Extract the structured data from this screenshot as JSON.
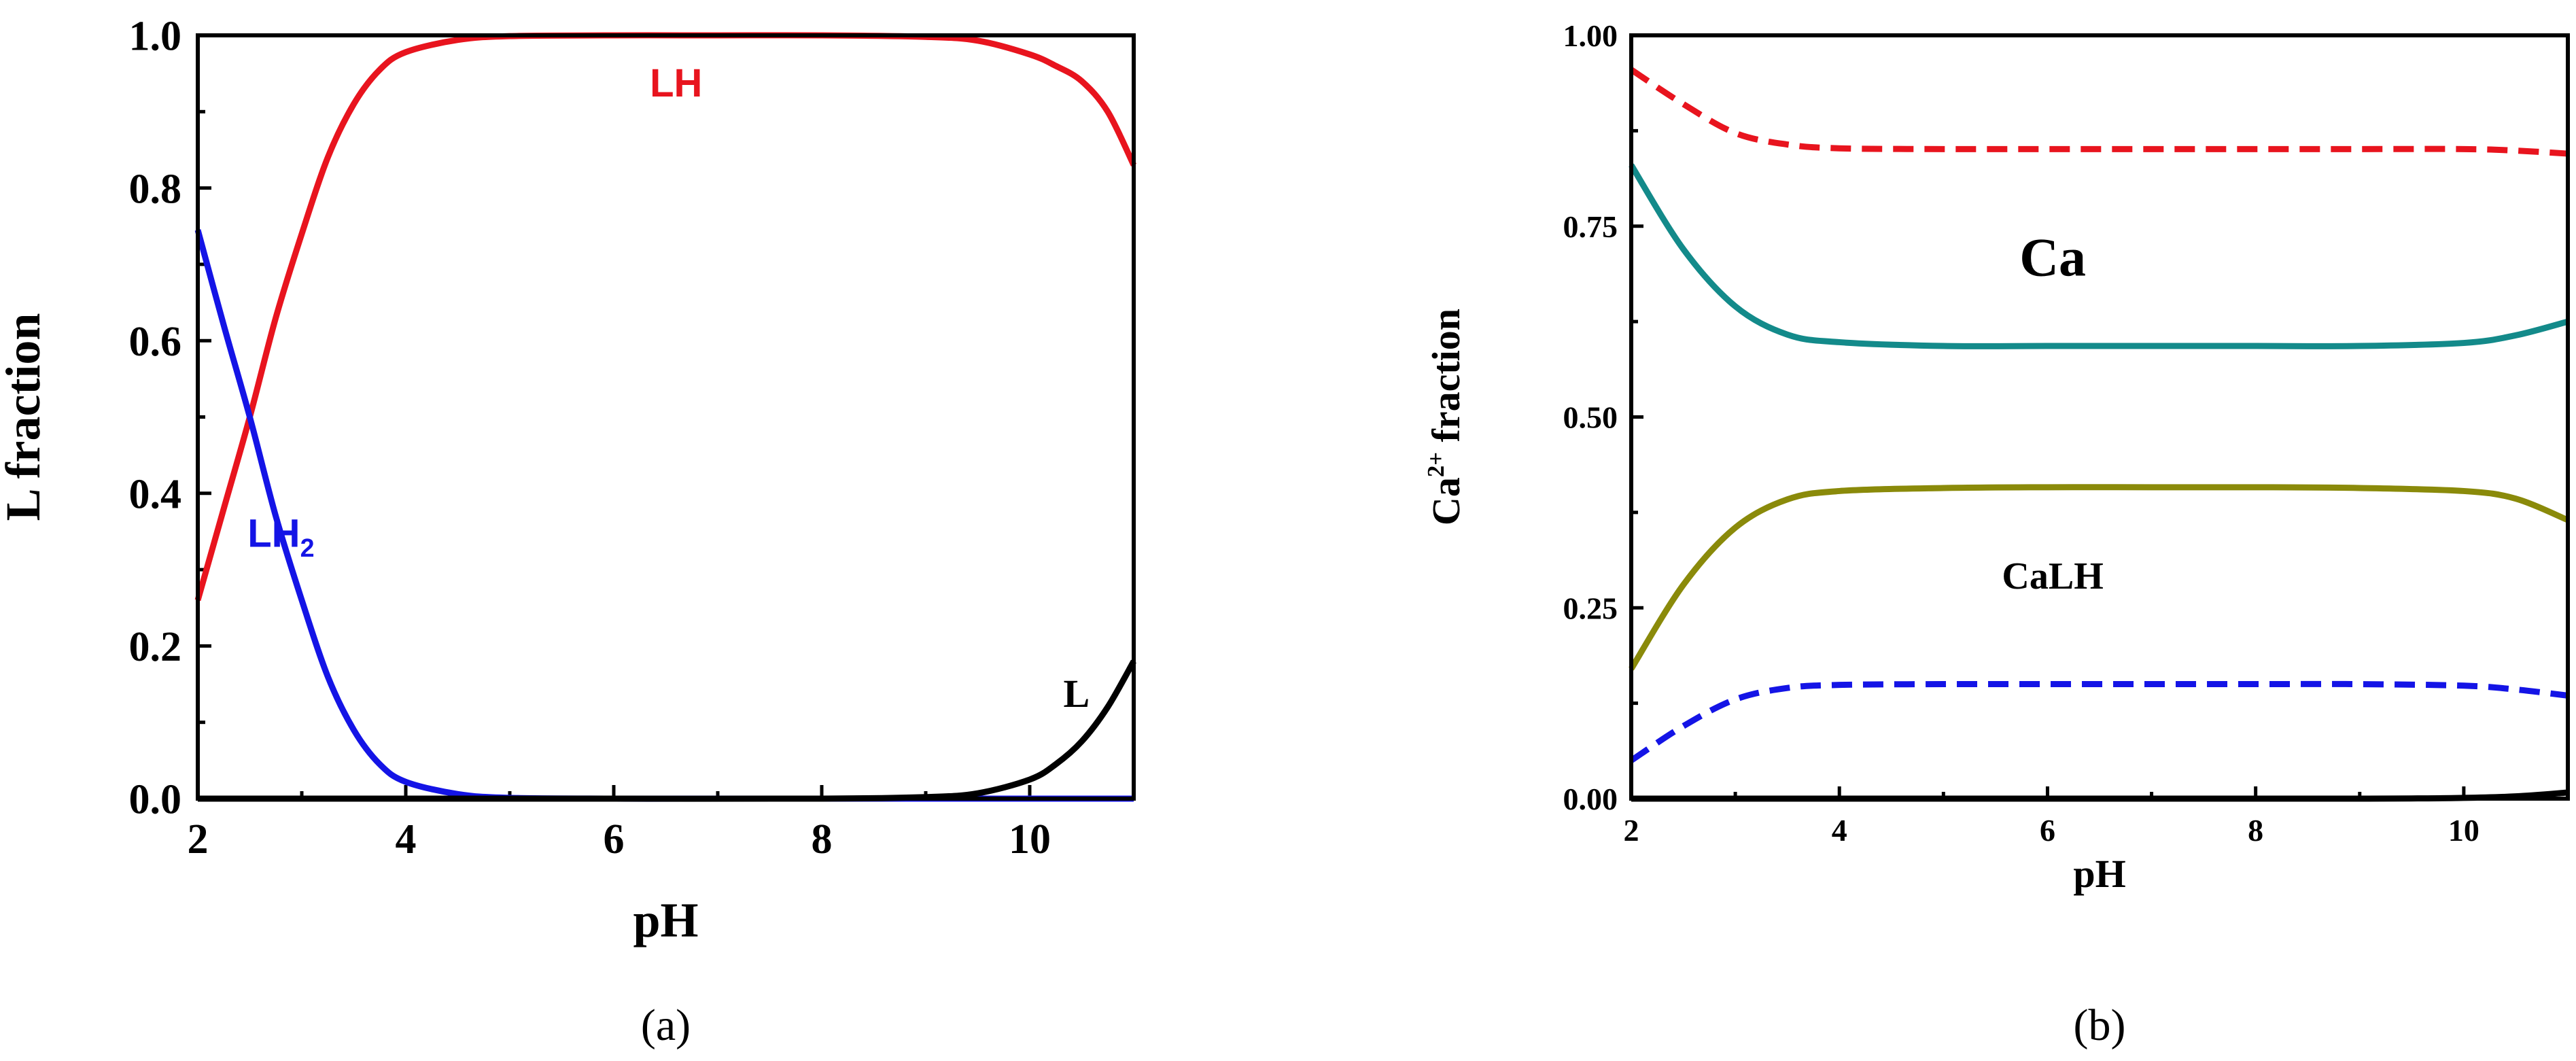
{
  "chart_data": [
    {
      "type": "line",
      "panel": "a",
      "caption": "(a)",
      "xlabel": "pH",
      "ylabel": "L fraction",
      "xlim": [
        2,
        11
      ],
      "ylim": [
        0,
        1
      ],
      "xticks": [
        2,
        4,
        6,
        8,
        10
      ],
      "xtick_labels": [
        "2",
        "4",
        "6",
        "8",
        "10"
      ],
      "yticks": [
        0,
        0.2,
        0.4,
        0.6,
        0.8,
        1.0
      ],
      "ytick_labels": [
        "0.0",
        "0.2",
        "0.4",
        "0.6",
        "0.8",
        "1.0"
      ],
      "series": [
        {
          "name": "LH",
          "color": "#e8141e",
          "dash": "solid",
          "x": [
            2,
            2.25,
            2.5,
            2.75,
            3,
            3.25,
            3.5,
            3.75,
            4,
            4.5,
            5,
            6,
            7,
            8,
            9,
            9.5,
            10,
            10.25,
            10.5,
            10.75,
            11
          ],
          "y": [
            0.26,
            0.38,
            0.5,
            0.63,
            0.74,
            0.84,
            0.91,
            0.955,
            0.978,
            0.994,
            0.999,
            1.0,
            1.0,
            1.0,
            0.998,
            0.993,
            0.975,
            0.96,
            0.94,
            0.9,
            0.83
          ]
        },
        {
          "name": "LH2",
          "color": "#1414e6",
          "dash": "solid",
          "x": [
            2,
            2.25,
            2.5,
            2.75,
            3,
            3.25,
            3.5,
            3.75,
            4,
            4.5,
            5,
            6,
            7,
            8,
            9,
            10,
            11
          ],
          "y": [
            0.745,
            0.62,
            0.5,
            0.37,
            0.26,
            0.16,
            0.09,
            0.045,
            0.022,
            0.006,
            0.001,
            0,
            0,
            0,
            0,
            0,
            0
          ]
        },
        {
          "name": "L",
          "color": "#000000",
          "dash": "solid",
          "x": [
            2,
            4,
            6,
            8,
            9,
            9.5,
            10,
            10.25,
            10.5,
            10.75,
            11
          ],
          "y": [
            0,
            0,
            0,
            0,
            0.002,
            0.007,
            0.025,
            0.045,
            0.075,
            0.12,
            0.18
          ]
        }
      ],
      "annotations": [
        {
          "text": "LH",
          "color": "#e8141e",
          "font": "sans",
          "x": 6.6,
          "y": 0.92
        },
        {
          "text": "LH",
          "sub": "2",
          "color": "#1414e6",
          "font": "sans",
          "x": 2.8,
          "y": 0.33
        },
        {
          "text": "L",
          "color": "#000000",
          "font": "serif",
          "x": 10.45,
          "y": 0.12
        }
      ]
    },
    {
      "type": "line",
      "panel": "b",
      "caption": "(b)",
      "xlabel": "pH",
      "ylabel": "Ca",
      "ylabel_sup": "2+",
      "ylabel_rest": " fraction",
      "xlim": [
        2,
        11
      ],
      "ylim": [
        0,
        1
      ],
      "xticks": [
        2,
        4,
        6,
        8,
        10
      ],
      "xtick_labels": [
        "2",
        "4",
        "6",
        "8",
        "10"
      ],
      "yticks": [
        0,
        0.25,
        0.5,
        0.75,
        1.0
      ],
      "ytick_labels": [
        "0.00",
        "0.25",
        "0.50",
        "0.75",
        "1.00"
      ],
      "series": [
        {
          "name": "red-dashed",
          "color": "#e8141e",
          "dash": "dashed",
          "x": [
            2,
            2.5,
            3,
            3.5,
            4,
            5,
            6,
            7,
            8,
            9,
            10,
            10.5,
            11
          ],
          "y": [
            0.955,
            0.91,
            0.872,
            0.857,
            0.852,
            0.851,
            0.851,
            0.851,
            0.851,
            0.851,
            0.851,
            0.849,
            0.845
          ]
        },
        {
          "name": "Ca",
          "color": "#138a8a",
          "dash": "solid",
          "x": [
            2,
            2.5,
            3,
            3.5,
            4,
            5,
            6,
            7,
            8,
            9,
            10,
            10.5,
            11
          ],
          "y": [
            0.83,
            0.72,
            0.645,
            0.608,
            0.598,
            0.593,
            0.593,
            0.593,
            0.593,
            0.593,
            0.597,
            0.607,
            0.625
          ]
        },
        {
          "name": "CaLH",
          "color": "#8a8a0a",
          "dash": "solid",
          "x": [
            2,
            2.5,
            3,
            3.5,
            4,
            5,
            6,
            7,
            8,
            9,
            10,
            10.5,
            11
          ],
          "y": [
            0.17,
            0.28,
            0.355,
            0.392,
            0.403,
            0.407,
            0.408,
            0.408,
            0.408,
            0.407,
            0.403,
            0.393,
            0.365
          ]
        },
        {
          "name": "blue-dashed",
          "color": "#1414e6",
          "dash": "dashed",
          "x": [
            2,
            2.5,
            3,
            3.5,
            4,
            5,
            6,
            7,
            8,
            9,
            10,
            10.5,
            11
          ],
          "y": [
            0.05,
            0.095,
            0.13,
            0.145,
            0.149,
            0.15,
            0.15,
            0.15,
            0.15,
            0.15,
            0.148,
            0.143,
            0.135
          ]
        },
        {
          "name": "black",
          "color": "#000000",
          "dash": "solid",
          "x": [
            2,
            6,
            9,
            10,
            10.5,
            11
          ],
          "y": [
            0,
            0,
            0,
            0.001,
            0.003,
            0.008
          ]
        }
      ],
      "annotations": [
        {
          "text": "Ca",
          "color": "#000000",
          "font": "serif",
          "x": 6.05,
          "y": 0.685,
          "size": "large"
        },
        {
          "text": "CaLH",
          "color": "#000000",
          "font": "serif",
          "x": 6.05,
          "y": 0.275,
          "size": "medium"
        }
      ]
    }
  ]
}
